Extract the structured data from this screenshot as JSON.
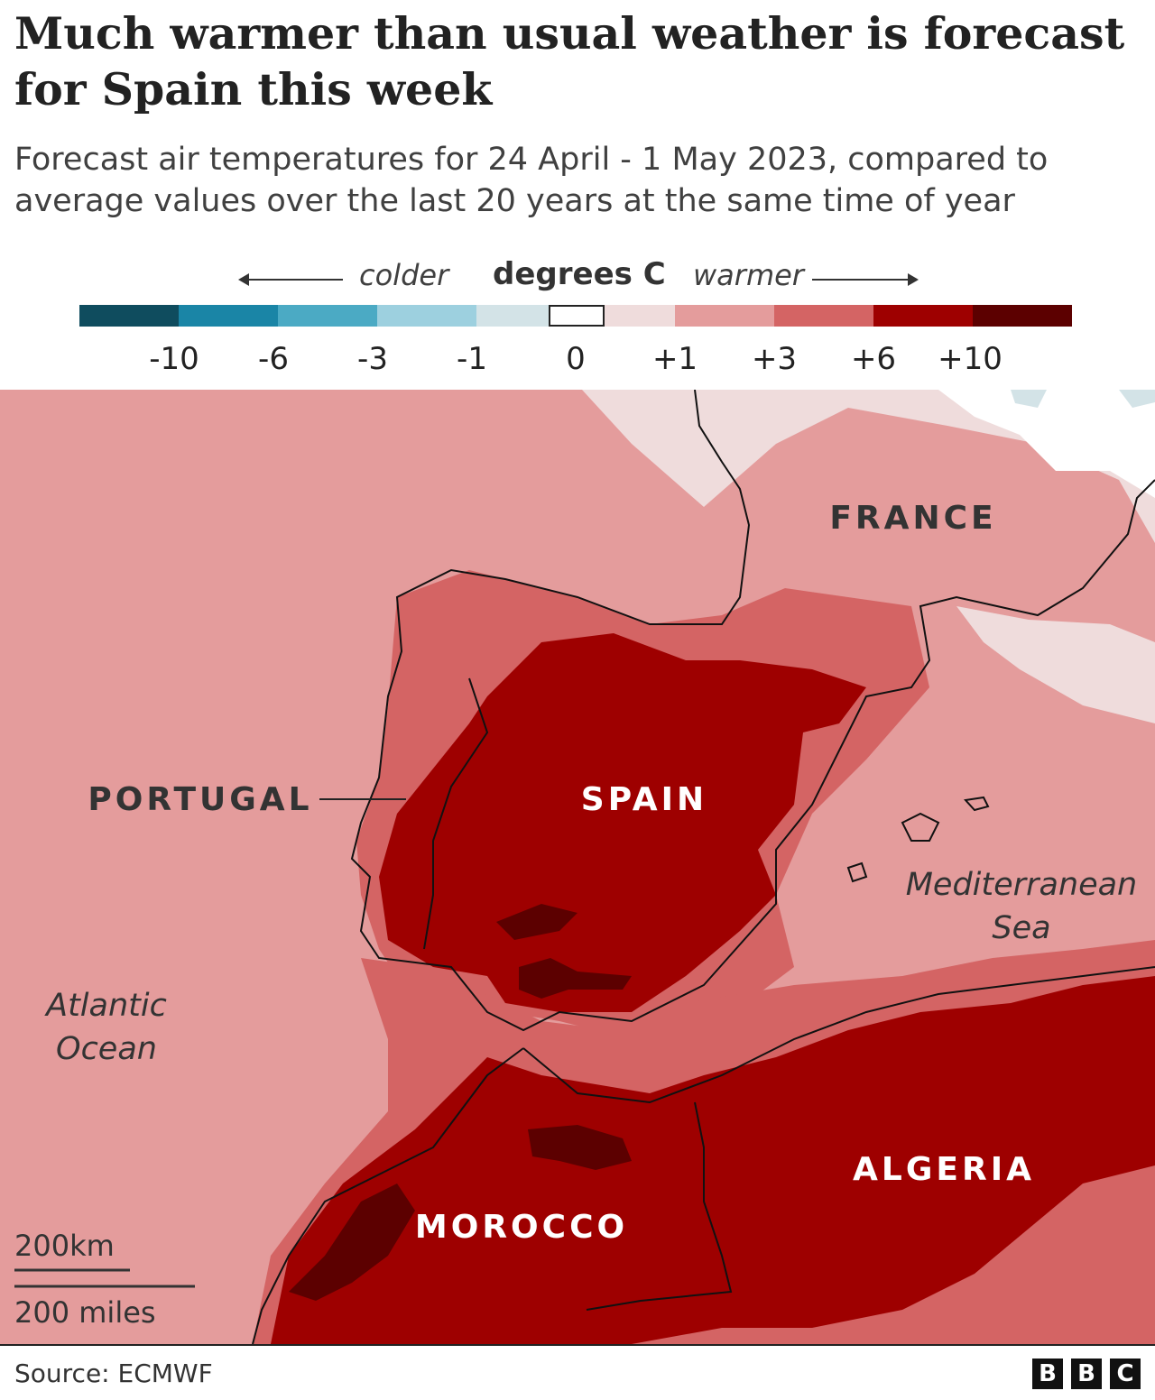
{
  "title": "Much warmer than usual weather is forecast for Spain this week",
  "subtitle": "Forecast air temperatures for 24 April - 1 May 2023, compared to average values over the last 20 years at the same time of year",
  "legend": {
    "colder": "colder",
    "unit": "degrees C",
    "warmer": "warmer",
    "bins": [
      {
        "color": "#0f4c5e"
      },
      {
        "color": "#1a85a6"
      },
      {
        "color": "#4baac4"
      },
      {
        "color": "#9dd0df"
      },
      {
        "color": "#d3e3e7"
      },
      {
        "color": "#ffffff"
      },
      {
        "color": "#efdcdc"
      },
      {
        "color": "#e49c9c"
      },
      {
        "color": "#d46464"
      },
      {
        "color": "#9e0000"
      },
      {
        "color": "#5c0000"
      }
    ],
    "tick_labels": [
      "-10",
      "-6",
      "-3",
      "-1",
      "0",
      "+1",
      "+3",
      "+6",
      "+10"
    ]
  },
  "map": {
    "countries": [
      "FRANCE",
      "PORTUGAL",
      "SPAIN",
      "MOROCCO",
      "ALGERIA"
    ],
    "seas": {
      "mediterranean": [
        "Mediterranean",
        "Sea"
      ],
      "atlantic": [
        "Atlantic",
        "Ocean"
      ]
    },
    "scale_km": "200km",
    "scale_miles": "200 miles"
  },
  "source": "Source: ECMWF",
  "logo": [
    "B",
    "B",
    "C"
  ]
}
